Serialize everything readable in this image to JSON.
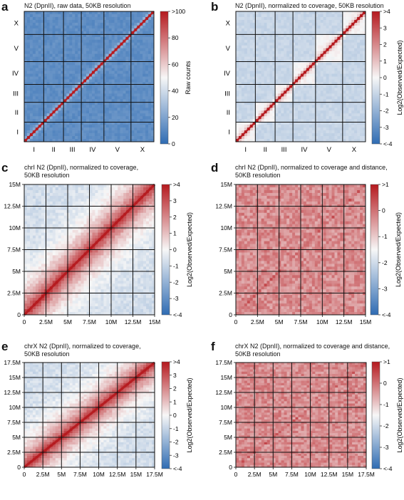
{
  "panels": [
    {
      "letter": "a",
      "title_lines": [
        "N2 (DpnII), raw data, 50KB resolution"
      ]
    },
    {
      "letter": "b",
      "title_lines": [
        "N2 (DpnII), normalized to coverage, 50KB resolution"
      ]
    },
    {
      "letter": "c",
      "title_lines": [
        "chrI N2 (DpnII), normalized to coverage,",
        "50KB resolution"
      ]
    },
    {
      "letter": "d",
      "title_lines": [
        "chrI N2 (DpnII), normalized to coverage and distance,",
        "50KB resolution"
      ]
    },
    {
      "letter": "e",
      "title_lines": [
        "chrX N2 (DpnII), normalized to coverage,",
        "50KB resolution"
      ]
    },
    {
      "letter": "f",
      "title_lines": [
        "chrX N2 (DpnII), normalized to coverage and distance,",
        "50KB resolution"
      ]
    }
  ],
  "colors": {
    "low": "#2f6cb3",
    "mid": "#f7f7f7",
    "high": "#b5191e",
    "grid": "#111111"
  },
  "chart_data": [
    {
      "type": "heatmap",
      "title": "N2 (DpnII), raw data, 50KB resolution",
      "x_ticks": [
        "I",
        "II",
        "III",
        "IV",
        "V",
        "X"
      ],
      "y_ticks": [
        "I",
        "II",
        "III",
        "IV",
        "V",
        "X"
      ],
      "grid_boundaries_mb": [
        15.07,
        30.35,
        44.13,
        61.62,
        82.54,
        100.26
      ],
      "colorbar": {
        "label": "Raw counts",
        "ticks": [
          "0",
          "20",
          "40",
          "60",
          "80",
          ">100"
        ],
        "range": [
          0,
          100
        ]
      },
      "pattern": "genome-wide; strong diagonal, low off-diagonal counts"
    },
    {
      "type": "heatmap",
      "title": "N2 (DpnII), normalized to coverage, 50KB resolution",
      "x_ticks": [
        "I",
        "II",
        "III",
        "IV",
        "V",
        "X"
      ],
      "y_ticks": [
        "I",
        "II",
        "III",
        "IV",
        "V",
        "X"
      ],
      "grid_boundaries_mb": [
        15.07,
        30.35,
        44.13,
        61.62,
        82.54,
        100.26
      ],
      "colorbar": {
        "label": "Log2(Observed/Expected)",
        "ticks": [
          "<-4",
          "-3",
          "-2",
          "-1",
          "0",
          "1",
          "2",
          "3",
          ">4"
        ],
        "range": [
          -4,
          4
        ]
      },
      "pattern": "genome-wide; diagonal enriched, inter-chromosomal depleted"
    },
    {
      "type": "heatmap",
      "title": "chrI N2 (DpnII), normalized to coverage, 50KB resolution",
      "axis_max_mb": 15,
      "x_ticks": [
        "0",
        "2.5M",
        "5M",
        "7.5M",
        "10M",
        "12.5M",
        "15M"
      ],
      "y_ticks": [
        "0",
        "2.5M",
        "5M",
        "7.5M",
        "10M",
        "12.5M",
        "15M"
      ],
      "colorbar": {
        "label": "Log2(Observed/Expected)",
        "ticks": [
          "<-4",
          "-3",
          "-2",
          "-1",
          "0",
          "1",
          "2",
          "3",
          ">4"
        ],
        "range": [
          -4,
          4
        ]
      },
      "pattern": "single chromosome; signal decays with distance from diagonal"
    },
    {
      "type": "heatmap",
      "title": "chrI N2 (DpnII), normalized to coverage and distance, 50KB resolution",
      "axis_max_mb": 15,
      "x_ticks": [
        "0",
        "2.5M",
        "5M",
        "7.5M",
        "10M",
        "12.5M",
        "15M"
      ],
      "y_ticks": [
        "0",
        "2.5M",
        "5M",
        "7.5M",
        "10M",
        "12.5M",
        "15M"
      ],
      "colorbar": {
        "label": "Log2(Observed/Expected)",
        "ticks": [
          "<-4",
          "-3",
          "-2",
          "-1",
          "0",
          ">1"
        ],
        "range": [
          -4,
          1
        ]
      },
      "pattern": "single chromosome; distance-normalized, near-uniform with domain structure"
    },
    {
      "type": "heatmap",
      "title": "chrX N2 (DpnII), normalized to coverage, 50KB resolution",
      "axis_max_mb": 17.5,
      "x_ticks": [
        "0",
        "2.5M",
        "5M",
        "7.5M",
        "10M",
        "12.5M",
        "15M",
        "17.5M"
      ],
      "y_ticks": [
        "0",
        "2.5M",
        "5M",
        "7.5M",
        "10M",
        "12.5M",
        "15M",
        "17.5M"
      ],
      "colorbar": {
        "label": "Log2(Observed/Expected)",
        "ticks": [
          "<-4",
          "-3",
          "-2",
          "-1",
          "0",
          "1",
          "2",
          "3",
          ">4"
        ],
        "range": [
          -4,
          4
        ]
      },
      "pattern": "single chromosome; signal decays with distance from diagonal"
    },
    {
      "type": "heatmap",
      "title": "chrX N2 (DpnII), normalized to coverage and distance, 50KB resolution",
      "axis_max_mb": 17.5,
      "x_ticks": [
        "0",
        "2.5M",
        "5M",
        "7.5M",
        "10M",
        "12.5M",
        "15M",
        "17.5M"
      ],
      "y_ticks": [
        "0",
        "2.5M",
        "5M",
        "7.5M",
        "10M",
        "12.5M",
        "15M",
        "17.5M"
      ],
      "colorbar": {
        "label": "Log2(Observed/Expected)",
        "ticks": [
          "<-4",
          "-3",
          "-2",
          "-1",
          "0",
          ">1"
        ],
        "range": [
          -4,
          1
        ]
      },
      "pattern": "single chromosome; distance-normalized, near-uniform with domain structure"
    }
  ]
}
